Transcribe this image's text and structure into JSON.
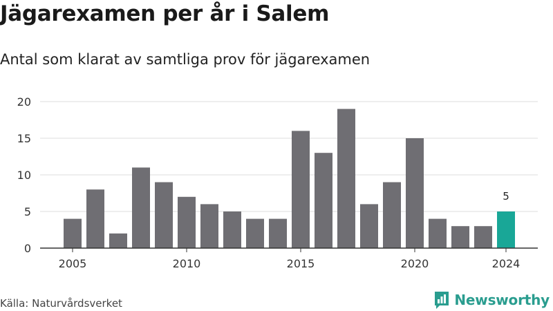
{
  "title": "Jägarexamen per år i Salem",
  "subtitle": "Antal som klarat av samtliga prov för jägarexamen",
  "source": "Källa: Naturvårdsverket",
  "brand": {
    "name": "Newsworthy",
    "icon": "newsworthy-logo-icon"
  },
  "colors": {
    "bar": "#6f6e73",
    "highlight": "#19a797",
    "grid": "#dddddd",
    "axis": "#333333",
    "brand": "#2a9d8f"
  },
  "chart_data": {
    "type": "bar",
    "x": [
      2005,
      2006,
      2007,
      2008,
      2009,
      2010,
      2011,
      2012,
      2013,
      2014,
      2015,
      2016,
      2017,
      2018,
      2019,
      2020,
      2021,
      2022,
      2023,
      2024
    ],
    "values": [
      4,
      8,
      2,
      11,
      9,
      7,
      6,
      5,
      4,
      4,
      16,
      13,
      19,
      6,
      9,
      15,
      4,
      3,
      3,
      5
    ],
    "highlight_index": 19,
    "data_labels": [
      {
        "x": 2024,
        "text": "5"
      }
    ],
    "ylim": [
      0,
      20
    ],
    "yticks": [
      0,
      5,
      10,
      15,
      20
    ],
    "xticks": [
      2005,
      2010,
      2015,
      2020,
      2024
    ],
    "grid": true
  }
}
